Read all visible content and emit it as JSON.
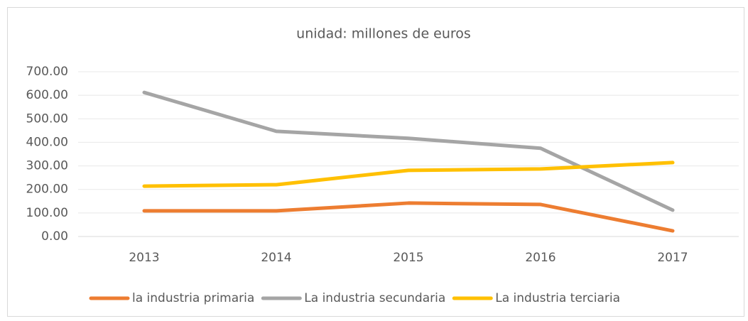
{
  "chart_data": {
    "type": "line",
    "title": "unidad: millones de euros",
    "categories": [
      "2013",
      "2014",
      "2015",
      "2016",
      "2017"
    ],
    "series": [
      {
        "name": "la industria primaria",
        "color": "#ed7d31",
        "values": [
          109,
          109,
          142,
          136,
          24
        ]
      },
      {
        "name": "La industria secundaria",
        "color": "#a5a5a5",
        "values": [
          612,
          447,
          417,
          375,
          112
        ]
      },
      {
        "name": "La industria terciaria",
        "color": "#ffc000",
        "values": [
          214,
          220,
          281,
          287,
          314
        ]
      }
    ],
    "ylim": [
      0,
      700
    ],
    "yticks": [
      {
        "value": 0,
        "label": "0.00"
      },
      {
        "value": 100,
        "label": "100.00"
      },
      {
        "value": 200,
        "label": "200.00"
      },
      {
        "value": 300,
        "label": "300.00"
      },
      {
        "value": 400,
        "label": "400.00"
      },
      {
        "value": 500,
        "label": "500.00"
      },
      {
        "value": 600,
        "label": "600.00"
      },
      {
        "value": 700,
        "label": "700.00"
      }
    ],
    "grid": true,
    "legend": "bottom"
  }
}
